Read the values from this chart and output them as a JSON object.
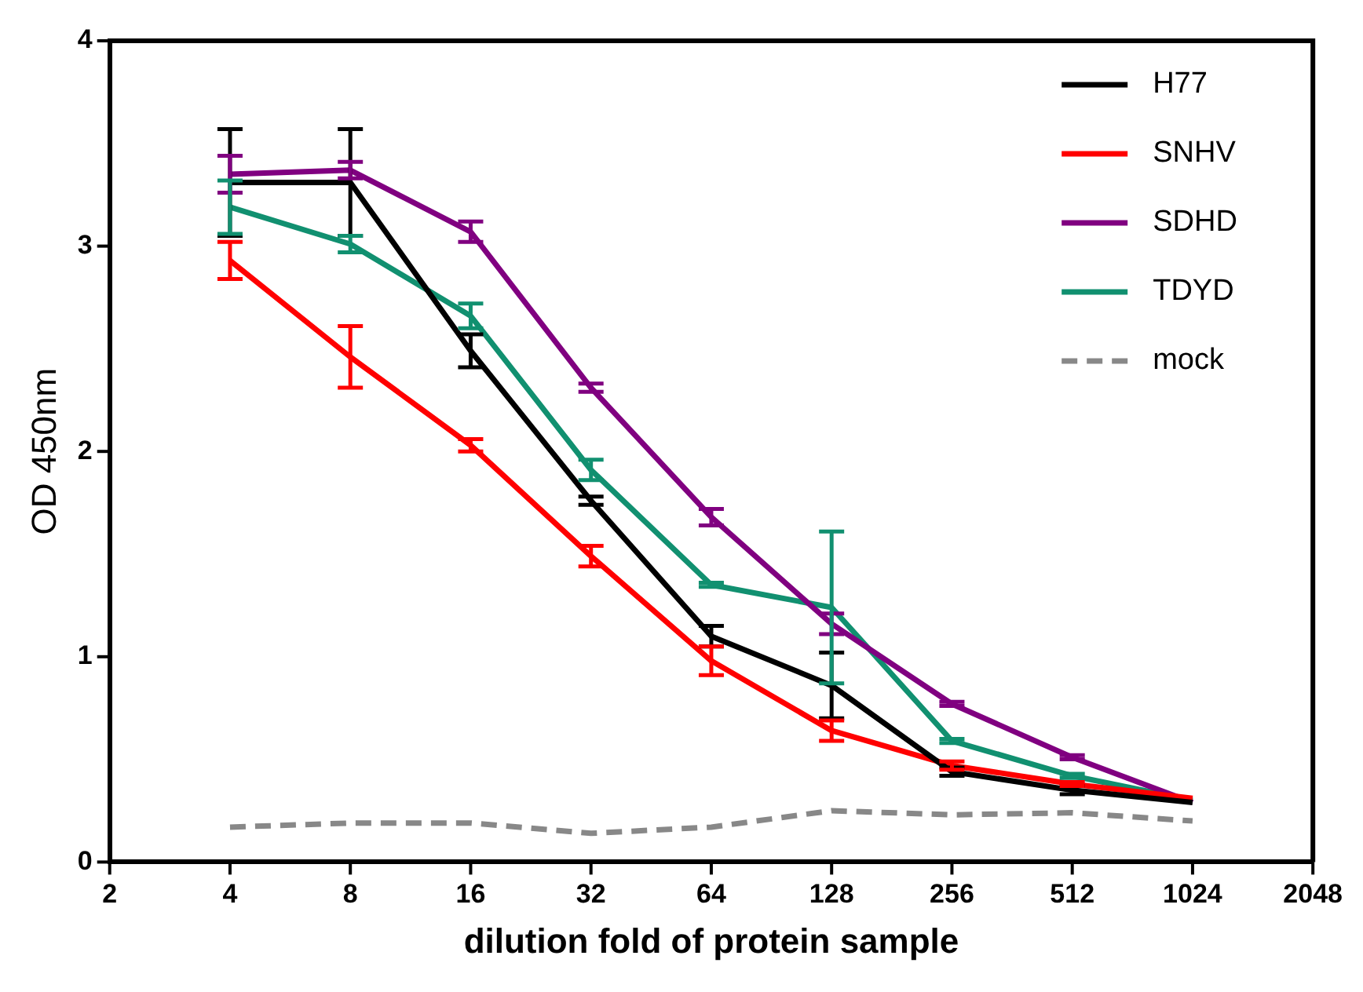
{
  "chart_data": {
    "type": "line",
    "xlabel": "dilution fold of protein sample",
    "ylabel": "OD 450nm",
    "x": [
      4,
      8,
      16,
      32,
      64,
      128,
      256,
      512,
      1024
    ],
    "log": "x",
    "xlim": [
      2,
      2048
    ],
    "xticks": [
      2,
      4,
      8,
      16,
      32,
      64,
      128,
      256,
      512,
      1024,
      2048
    ],
    "ylim": [
      0,
      4
    ],
    "yticks": [
      0,
      1,
      2,
      3,
      4
    ],
    "grid": false,
    "legend": "top right",
    "marker": "none",
    "series": [
      {
        "name": "H77",
        "color": "#000000",
        "values": [
          3.31,
          3.31,
          2.49,
          1.76,
          1.1,
          0.86,
          0.44,
          0.35,
          0.29
        ],
        "errors": [
          0.26,
          0.26,
          0.08,
          0.02,
          0.05,
          0.16,
          0.02,
          0.02,
          null
        ]
      },
      {
        "name": "SNHV",
        "color": "#ff0000",
        "values": [
          2.93,
          2.46,
          2.03,
          1.49,
          0.98,
          0.64,
          0.47,
          0.38,
          0.31
        ],
        "errors": [
          0.09,
          0.15,
          0.03,
          0.05,
          0.07,
          0.05,
          0.02,
          0.01,
          null
        ]
      },
      {
        "name": "SDHD",
        "color": "#800080",
        "values": [
          3.35,
          3.37,
          3.07,
          2.31,
          1.68,
          1.16,
          0.77,
          0.51,
          0.29
        ],
        "errors": [
          0.09,
          0.04,
          0.05,
          0.02,
          0.04,
          0.05,
          0.01,
          0.01,
          null
        ]
      },
      {
        "name": "TDYD",
        "color": "#119070",
        "values": [
          3.19,
          3.01,
          2.66,
          1.91,
          1.35,
          1.24,
          0.59,
          0.42,
          0.3
        ],
        "errors": [
          0.13,
          0.04,
          0.06,
          0.05,
          0.01,
          0.37,
          0.01,
          0.01,
          null
        ]
      },
      {
        "name": "mock",
        "color": "#888888",
        "line_style": "dashed",
        "values": [
          0.17,
          0.19,
          0.19,
          0.14,
          0.17,
          0.25,
          0.23,
          0.24,
          0.2
        ]
      }
    ]
  }
}
